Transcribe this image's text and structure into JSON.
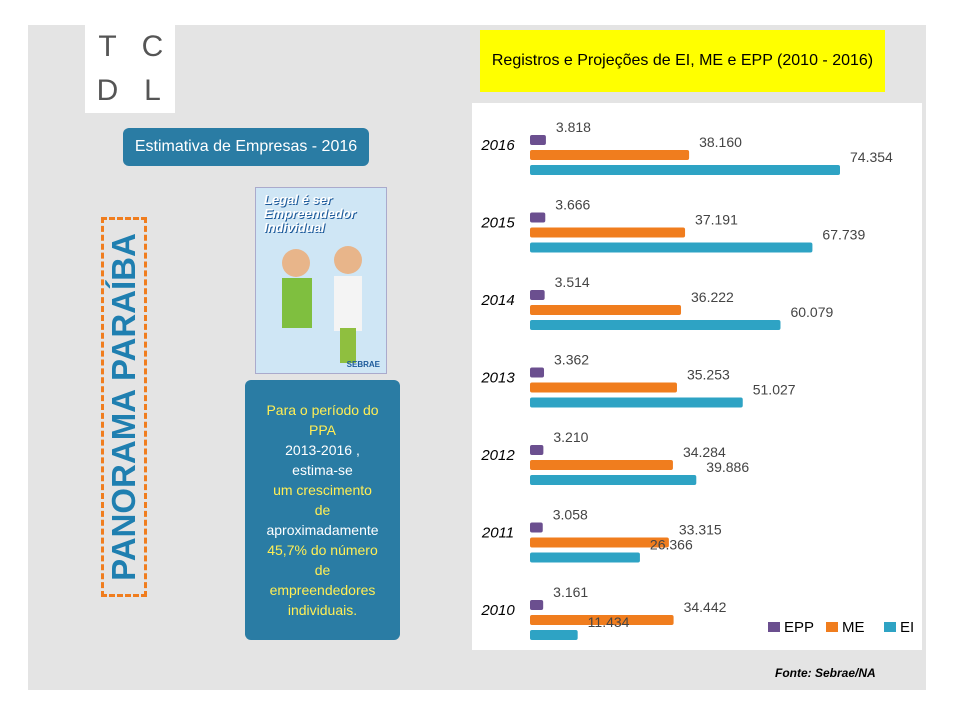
{
  "logo": {
    "letters": [
      "T",
      "C",
      "D",
      "L"
    ]
  },
  "header": {
    "title": "Registros e Projeções de EI, ME e EPP (2010 - 2016)"
  },
  "sidebar": {
    "button": "Estimativa de Empresas - 2016",
    "vertical_title": "PANORAMA PARAÍBA",
    "poster": {
      "lines": [
        "Legal é ser",
        "Empreendedor",
        "Individual"
      ],
      "brand": "SEBRAE"
    },
    "note_lines": [
      "Para o período do",
      "PPA",
      "2013-2016 ,",
      "estima-se",
      "um crescimento",
      "de",
      "aproximadamente",
      "45,7% do número",
      "de",
      "empreendedores",
      "individuais."
    ]
  },
  "chart_data": {
    "type": "hbar",
    "categories": [
      "2016",
      "2015",
      "2014",
      "2013",
      "2012",
      "2011",
      "2010"
    ],
    "series": [
      {
        "name": "EPP",
        "color": "#6b4f8f",
        "values": [
          3818,
          3666,
          3514,
          3362,
          3210,
          3058,
          3161
        ],
        "value_labels": [
          "3.818",
          "3.666",
          "3.514",
          "3.362",
          "3.210",
          "3.058",
          "3.161"
        ]
      },
      {
        "name": "ME",
        "color": "#f07d1e",
        "values": [
          38160,
          37191,
          36222,
          35253,
          34284,
          33315,
          34442
        ],
        "value_labels": [
          "38.160",
          "37.191",
          "36.222",
          "35.253",
          "34.284",
          "33.315",
          "34.442"
        ]
      },
      {
        "name": "EI",
        "color": "#2ea3c4",
        "values": [
          74354,
          67739,
          60079,
          51027,
          39886,
          26366,
          11434
        ],
        "value_labels": [
          "74.354",
          "67.739",
          "60.079",
          "51.027",
          "39.886",
          "26.366",
          "11.434"
        ]
      }
    ],
    "legend": "bottom-right"
  },
  "footer": {
    "source": "Fonte: Sebrae/NA"
  }
}
